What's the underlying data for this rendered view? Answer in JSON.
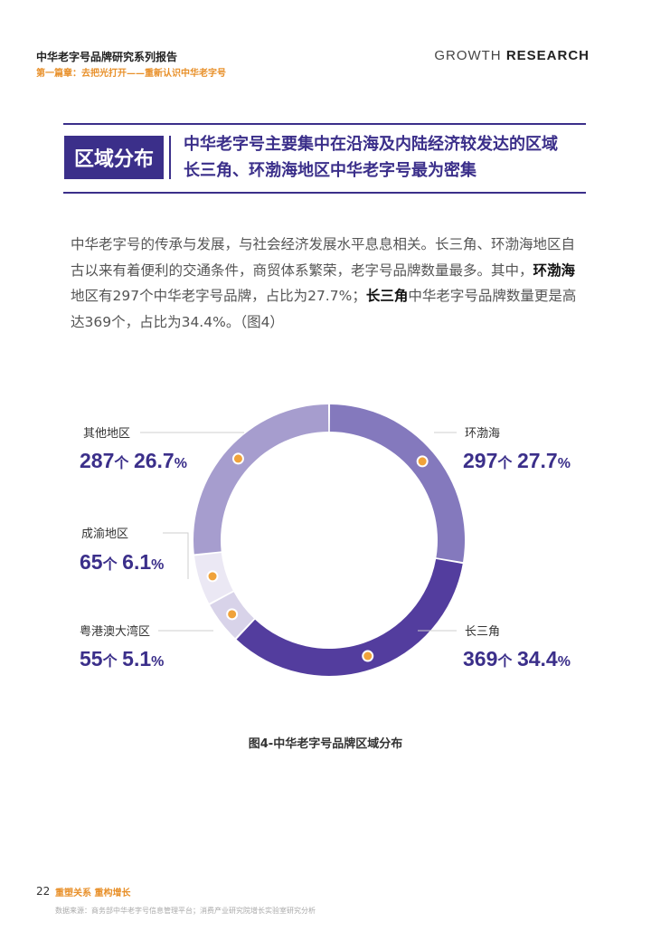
{
  "header": {
    "report_title": "中华老字号品牌研究系列报告",
    "chapter": "第一篇章：去把光打开——重新认识中华老字号",
    "brand_prefix": "GROWTH ",
    "brand_bold": "RESEARCH"
  },
  "section": {
    "tag": "区域分布",
    "headline_1": "中华老字号主要集中在沿海及内陆经济较发达的区域",
    "headline_2": "长三角、环渤海地区中华老字号最为密集"
  },
  "paragraph": {
    "p1": "中华老字号的传承与发展，与社会经济发展水平息息相关。长三角、环渤海地区自古以来有着便利的交通条件，商贸体系繁荣，老字号品牌数量最多。其中，",
    "b1": "环渤海",
    "p2": "地区有297个中华老字号品牌，占比为27.7%；",
    "b2": "长三角",
    "p3": "中华老字号品牌数量更是高达369个，占比为34.4%。（图4）"
  },
  "chart_data": {
    "type": "pie",
    "title": "图4-中华老字号品牌区域分布",
    "unit": "个",
    "slices": [
      {
        "name": "环渤海",
        "count": 297,
        "percent": 27.7,
        "color": "#8479bd"
      },
      {
        "name": "长三角",
        "count": 369,
        "percent": 34.4,
        "color": "#533d9e"
      },
      {
        "name": "粤港澳大湾区",
        "count": 55,
        "percent": 5.1,
        "color": "#d8d3e9"
      },
      {
        "name": "成渝地区",
        "count": 65,
        "percent": 6.1,
        "color": "#ebe8f4"
      },
      {
        "name": "其他地区",
        "count": 287,
        "percent": 26.7,
        "color": "#a69dce"
      }
    ],
    "accent_dot_color": "#f0a23a",
    "label_color": "#3b2f8a"
  },
  "footer": {
    "page_number": "22",
    "slogan": "重塑关系  重构增长",
    "source": "数据来源：商务部中华老字号信息管理平台；消费产业研究院增长实验室研究分析"
  }
}
